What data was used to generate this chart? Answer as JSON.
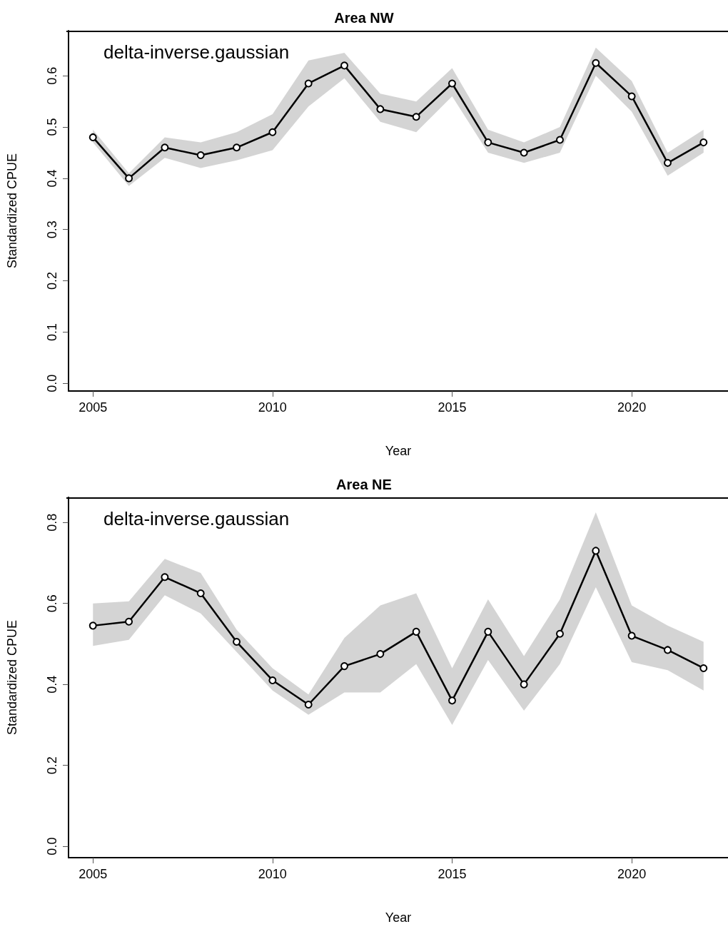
{
  "chart_data": [
    {
      "type": "line",
      "title": "Area NW",
      "xlabel": "Year",
      "ylabel": "Standardized CPUE",
      "annotations": [
        "delta-inverse.gaussian"
      ],
      "marker": "circle",
      "line_style": "solid",
      "x": [
        2005,
        2006,
        2007,
        2008,
        2009,
        2010,
        2011,
        2012,
        2013,
        2014,
        2015,
        2016,
        2017,
        2018,
        2019,
        2020,
        2021,
        2022
      ],
      "xlim": [
        2004.32,
        2022.68
      ],
      "xticks": [
        2005,
        2010,
        2015,
        2020
      ],
      "ylim": [
        -0.015,
        0.688
      ],
      "yticks": [
        {
          "value": 0,
          "label": "0.0"
        },
        {
          "value": 0.1,
          "label": "0.1"
        },
        {
          "value": 0.2,
          "label": "0.2"
        },
        {
          "value": 0.3,
          "label": "0.3"
        },
        {
          "value": 0.4,
          "label": "0.4"
        },
        {
          "value": 0.5,
          "label": "0.5"
        },
        {
          "value": 0.6,
          "label": "0.6"
        }
      ],
      "series": [
        {
          "color": "#000000",
          "values": [
            0.48,
            0.4,
            0.46,
            0.445,
            0.46,
            0.49,
            0.585,
            0.62,
            0.535,
            0.52,
            0.585,
            0.47,
            0.45,
            0.475,
            0.625,
            0.56,
            0.43,
            0.47
          ],
          "lower": [
            0.47,
            0.385,
            0.44,
            0.42,
            0.435,
            0.455,
            0.54,
            0.595,
            0.51,
            0.49,
            0.56,
            0.45,
            0.43,
            0.45,
            0.6,
            0.53,
            0.405,
            0.45
          ],
          "upper": [
            0.495,
            0.41,
            0.48,
            0.47,
            0.49,
            0.525,
            0.63,
            0.645,
            0.565,
            0.55,
            0.615,
            0.495,
            0.47,
            0.5,
            0.655,
            0.59,
            0.45,
            0.495
          ]
        }
      ]
    },
    {
      "type": "line",
      "title": "Area NE",
      "xlabel": "Year",
      "ylabel": "Standardized CPUE",
      "annotations": [
        "delta-inverse.gaussian"
      ],
      "marker": "circle",
      "line_style": "solid",
      "x": [
        2005,
        2006,
        2007,
        2008,
        2009,
        2010,
        2011,
        2012,
        2013,
        2014,
        2015,
        2016,
        2017,
        2018,
        2019,
        2020,
        2021,
        2022
      ],
      "xlim": [
        2004.32,
        2022.68
      ],
      "xticks": [
        2005,
        2010,
        2015,
        2020
      ],
      "ylim": [
        -0.028,
        0.862
      ],
      "yticks": [
        {
          "value": 0,
          "label": "0.0"
        },
        {
          "value": 0.2,
          "label": "0.2"
        },
        {
          "value": 0.4,
          "label": "0.4"
        },
        {
          "value": 0.6,
          "label": "0.6"
        },
        {
          "value": 0.8,
          "label": "0.8"
        }
      ],
      "series": [
        {
          "color": "#000000",
          "values": [
            0.545,
            0.555,
            0.665,
            0.625,
            0.505,
            0.41,
            0.35,
            0.445,
            0.475,
            0.53,
            0.36,
            0.53,
            0.4,
            0.525,
            0.73,
            0.52,
            0.485,
            0.44
          ],
          "lower": [
            0.495,
            0.51,
            0.62,
            0.575,
            0.48,
            0.385,
            0.325,
            0.38,
            0.38,
            0.45,
            0.3,
            0.46,
            0.335,
            0.45,
            0.64,
            0.455,
            0.435,
            0.385
          ],
          "upper": [
            0.6,
            0.605,
            0.71,
            0.675,
            0.535,
            0.44,
            0.375,
            0.515,
            0.595,
            0.625,
            0.44,
            0.61,
            0.47,
            0.61,
            0.825,
            0.595,
            0.545,
            0.505
          ]
        }
      ]
    }
  ]
}
